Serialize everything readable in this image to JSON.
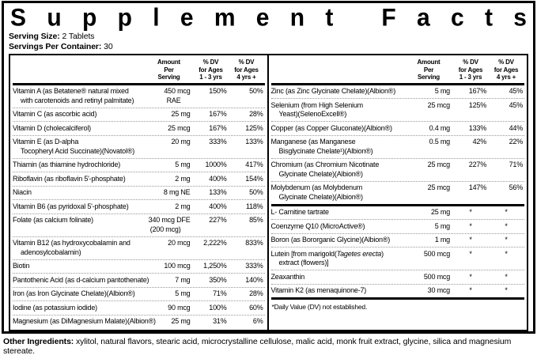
{
  "title": "Supplement Facts",
  "serving": {
    "size_label": "Serving Size:",
    "size_value": "2 Tablets",
    "container_label": "Servings Per Container:",
    "container_value": "30"
  },
  "col_headers": {
    "amount": [
      "Amount",
      "Per",
      "Serving"
    ],
    "dv13": [
      "% DV",
      "for Ages",
      "1 - 3 yrs"
    ],
    "dv4": [
      "% DV",
      "for Ages",
      "4 yrs +"
    ]
  },
  "left_rows": [
    {
      "name": "Vitamin A (as Betatene® natural mixed",
      "name2": "with carotenoids and retinyl palmitate)",
      "amount": "450 mcg",
      "amount2": "RAE",
      "dv13": "150%",
      "dv4": "50%"
    },
    {
      "name": "Vitamin C (as ascorbic acid)",
      "amount": "25 mg",
      "dv13": "167%",
      "dv4": "28%"
    },
    {
      "name": "Vitamin D (cholecalciferol)",
      "amount": "25 mcg",
      "dv13": "167%",
      "dv4": "125%"
    },
    {
      "name": "Vitamin E (as D-alpha",
      "name2": "Tocopheryl Acid Succinate)(Novatol®)",
      "amount": "20 mg",
      "dv13": "333%",
      "dv4": "133%"
    },
    {
      "name": "Thiamin (as thiamine hydrochloride)",
      "amount": "5 mg",
      "dv13": "1000%",
      "dv4": "417%"
    },
    {
      "name": "Riboflavin (as riboflavin 5'-phosphate)",
      "amount": "2 mg",
      "dv13": "400%",
      "dv4": "154%"
    },
    {
      "name": "Niacin",
      "amount": "8 mg NE",
      "dv13": "133%",
      "dv4": "50%"
    },
    {
      "name": "Vitamin B6 (as pyridoxal 5'-phosphate)",
      "amount": "2 mg",
      "dv13": "400%",
      "dv4": "118%"
    },
    {
      "name": "Folate (as calcium folinate)",
      "amount": "340 mcg DFE",
      "amount2": "(200 mcg)",
      "dv13": "227%",
      "dv4": "85%"
    },
    {
      "name": "Vitamin B12 (as hydroxycobalamin and",
      "name2": "adenosylcobalamin)",
      "amount": "20 mcg",
      "dv13": "2,222%",
      "dv4": "833%"
    },
    {
      "name": "Biotin",
      "amount": "100 mcg",
      "dv13": "1,250%",
      "dv4": "333%"
    },
    {
      "name": "Pantothenic Acid (as d-calcium pantothenate)",
      "amount": "7 mg",
      "dv13": "350%",
      "dv4": "140%"
    },
    {
      "name": "Iron (as Iron Glycinate Chelate)(Albion®)",
      "amount": "5 mg",
      "dv13": "71%",
      "dv4": "28%"
    },
    {
      "name": "Iodine (as potassium iodide)",
      "amount": "90 mcg",
      "dv13": "100%",
      "dv4": "60%"
    },
    {
      "name": "Magnesium (as DiMagnesium Malate)(Albion®)",
      "amount": "25 mg",
      "dv13": "31%",
      "dv4": "6%"
    }
  ],
  "right_top_rows": [
    {
      "name": "Zinc (as Zinc Glycinate Chelate)(Albion®)",
      "amount": "5 mg",
      "dv13": "167%",
      "dv4": "45%"
    },
    {
      "name": "Selenium (from High Selenium",
      "name2": "Yeast)(SelenoExcell®)",
      "amount": "25 mcg",
      "dv13": "125%",
      "dv4": "45%"
    },
    {
      "name": "Copper (as Copper Gluconate)(Albion®)",
      "amount": "0.4 mg",
      "dv13": "133%",
      "dv4": "44%"
    },
    {
      "name": "Manganese (as Manganese",
      "name2": "Bisglycinate Chelate¹)(Albion®)",
      "amount": "0.5 mg",
      "dv13": "42%",
      "dv4": "22%"
    },
    {
      "name": "Chromium (as Chromium Nicotinate",
      "name2": "Glycinate Chelate)(Albion®)",
      "amount": "25 mcg",
      "dv13": "227%",
      "dv4": "71%"
    },
    {
      "name": "Molybdenum (as Molybdenum",
      "name2": "Glycinate Chelate)(Albion®)",
      "amount": "25 mcg",
      "dv13": "147%",
      "dv4": "56%"
    }
  ],
  "right_bottom_rows": [
    {
      "name": "L- Carnitine tartrate",
      "amount": "25 mg",
      "dv13": "*",
      "dv4": "*"
    },
    {
      "name": "Coenzyme Q10 (MicroActive®)",
      "amount": "5 mg",
      "dv13": "*",
      "dv4": "*"
    },
    {
      "name": "Boron (as Bororganic Glycine)(Albion®)",
      "amount": "1 mg",
      "dv13": "*",
      "dv4": "*"
    },
    {
      "name": "Lutein [from marigold(",
      "name_italic": "Tagetes erecta",
      "name_post": ")",
      "name2": "extract (flowers)]",
      "amount": "500 mcg",
      "dv13": "*",
      "dv4": "*"
    },
    {
      "name": "Zeaxanthin",
      "amount": "500 mcg",
      "dv13": "*",
      "dv4": "*"
    },
    {
      "name": "Vitamin K2 (as menaquinone-7)",
      "amount": "30 mcg",
      "dv13": "*",
      "dv4": "*"
    }
  ],
  "footnote": "*Daily Value (DV) not established.",
  "other_ingredients": {
    "label": "Other Ingredients:",
    "text": " xylitol, natural flavors, stearic acid, microcrystalline cellulose, malic acid, monk fruit extract, glycine, silica and magnesium stereate."
  }
}
